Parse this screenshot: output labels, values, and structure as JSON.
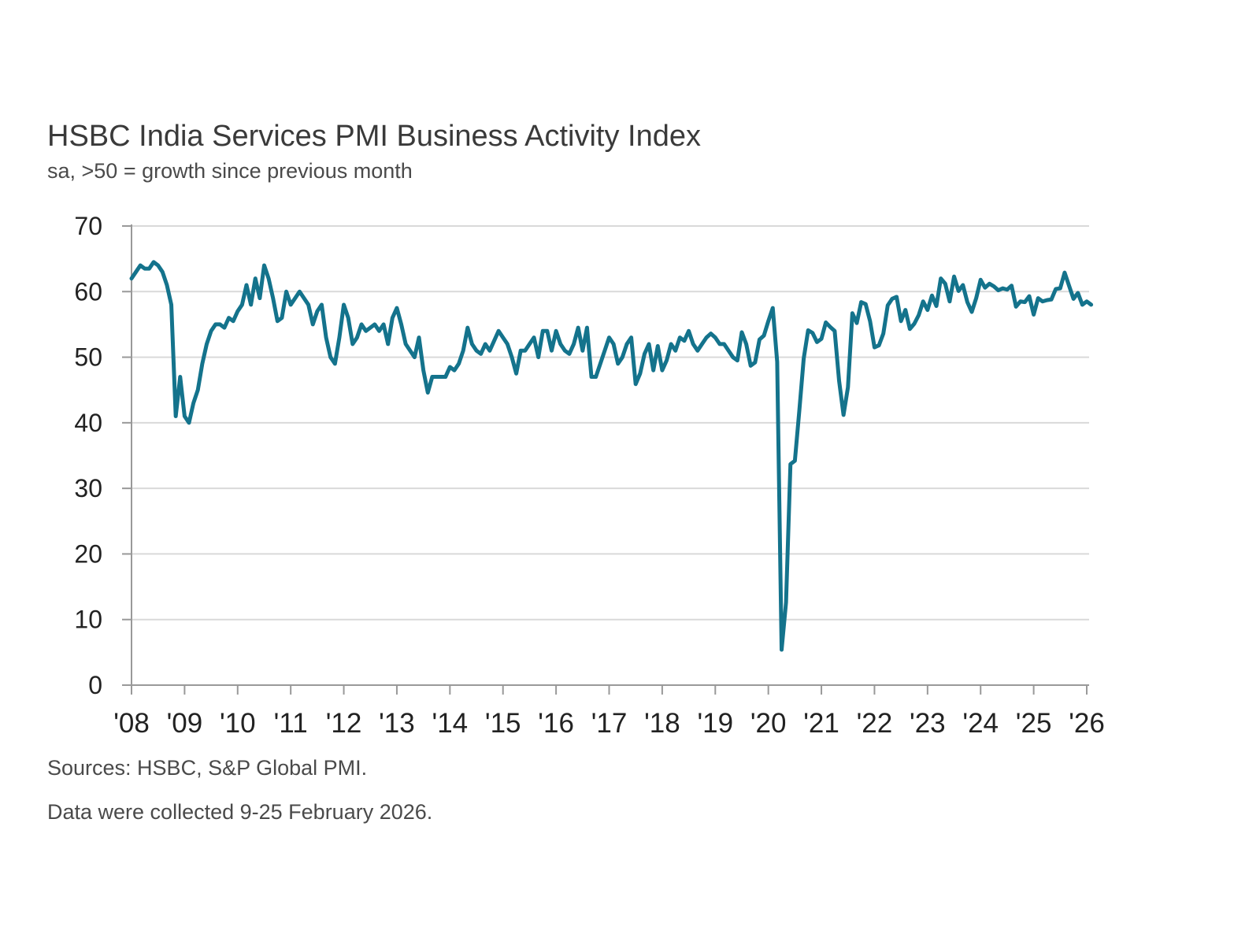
{
  "chart_data": {
    "type": "line",
    "title": "HSBC India Services PMI Business Activity Index",
    "subtitle": "sa, >50 = growth since previous month",
    "xlabel": "",
    "ylabel": "",
    "ylim": [
      0,
      70
    ],
    "yticks": [
      "0",
      "10",
      "20",
      "30",
      "40",
      "50",
      "60",
      "70"
    ],
    "xticks": [
      "'08",
      "'09",
      "'10",
      "'11",
      "'12",
      "'13",
      "'14",
      "'15",
      "'16",
      "'17",
      "'18",
      "'19",
      "'20",
      "'21",
      "'22",
      "'23",
      "'24",
      "'25",
      "'26"
    ],
    "xrange": [
      "2008-01",
      "2026-02"
    ],
    "grid": true,
    "line_color": "#14738c",
    "series": [
      {
        "frequency": "monthly",
        "values_by_year": {
          "2008": [
            62,
            63,
            64,
            63.5,
            63.5,
            64.5,
            64,
            63,
            61,
            58,
            41,
            47
          ],
          "2009": [
            41,
            40,
            43,
            45,
            49,
            52,
            54,
            55,
            55,
            54.5,
            56,
            55.5
          ],
          "2010": [
            57,
            58,
            61,
            58,
            62,
            59,
            64,
            62,
            59,
            55.5,
            56,
            60
          ],
          "2011": [
            58,
            59,
            60,
            59,
            58,
            55,
            57,
            58,
            53,
            50,
            49,
            53
          ],
          "2012": [
            58,
            56,
            52,
            53,
            55,
            54,
            54.5,
            55,
            54,
            55,
            52,
            56
          ],
          "2013": [
            57.5,
            55,
            52,
            51,
            50,
            53,
            48,
            44.6,
            47,
            47,
            47,
            47
          ],
          "2014": [
            48.5,
            48,
            49,
            51,
            54.5,
            52,
            51,
            50.5,
            52,
            51,
            52.5,
            54
          ],
          "2015": [
            53,
            52,
            50,
            47.5,
            51,
            51,
            52,
            53,
            50,
            54,
            54,
            51
          ],
          "2016": [
            54,
            52,
            51,
            50.5,
            52,
            54.5,
            51,
            54.5,
            47,
            47,
            49,
            51
          ],
          "2017": [
            53,
            52,
            49,
            50,
            52,
            53,
            45.9,
            47.5,
            50.5,
            52,
            48,
            51.7
          ],
          "2018": [
            48,
            49.5,
            52,
            51,
            53,
            52.5,
            54,
            52,
            51,
            52,
            53,
            53.6
          ],
          "2019": [
            53,
            52,
            52,
            51,
            50,
            49.5,
            53.8,
            52,
            48.7,
            49.2,
            52.7,
            53.3
          ],
          "2020": [
            55.5,
            57.5,
            49.3,
            5.4,
            12.6,
            33.7,
            34.2,
            41.8,
            49.8,
            54.1,
            53.7,
            52.3
          ],
          "2021": [
            52.8,
            55.3,
            54.6,
            54,
            46.4,
            41.2,
            45.4,
            56.7,
            55.2,
            58.4,
            58.1,
            55.5
          ],
          "2022": [
            51.5,
            51.8,
            53.6,
            57.9,
            58.9,
            59.2,
            55.5,
            57.2,
            54.3,
            55.1,
            56.4,
            58.5
          ],
          "2023": [
            57.2,
            59.4,
            57.8,
            62,
            61.2,
            58.5,
            62.3,
            60.1,
            61,
            58.4,
            56.9,
            59
          ],
          "2024": [
            61.8,
            60.6,
            61.2,
            60.8,
            60.2,
            60.5,
            60.3,
            60.9,
            57.7,
            58.5,
            58.4,
            59.3
          ],
          "2025": [
            56.5,
            59,
            58.5,
            58.7,
            58.8,
            60.4,
            60.5,
            62.9,
            60.9,
            58.9,
            59.8,
            58
          ],
          "2026": [
            58.5,
            58
          ]
        }
      }
    ]
  },
  "footer": {
    "sources": "Sources: HSBC, S&P Global PMI.",
    "collection": "Data were collected 9-25 February 2026."
  }
}
